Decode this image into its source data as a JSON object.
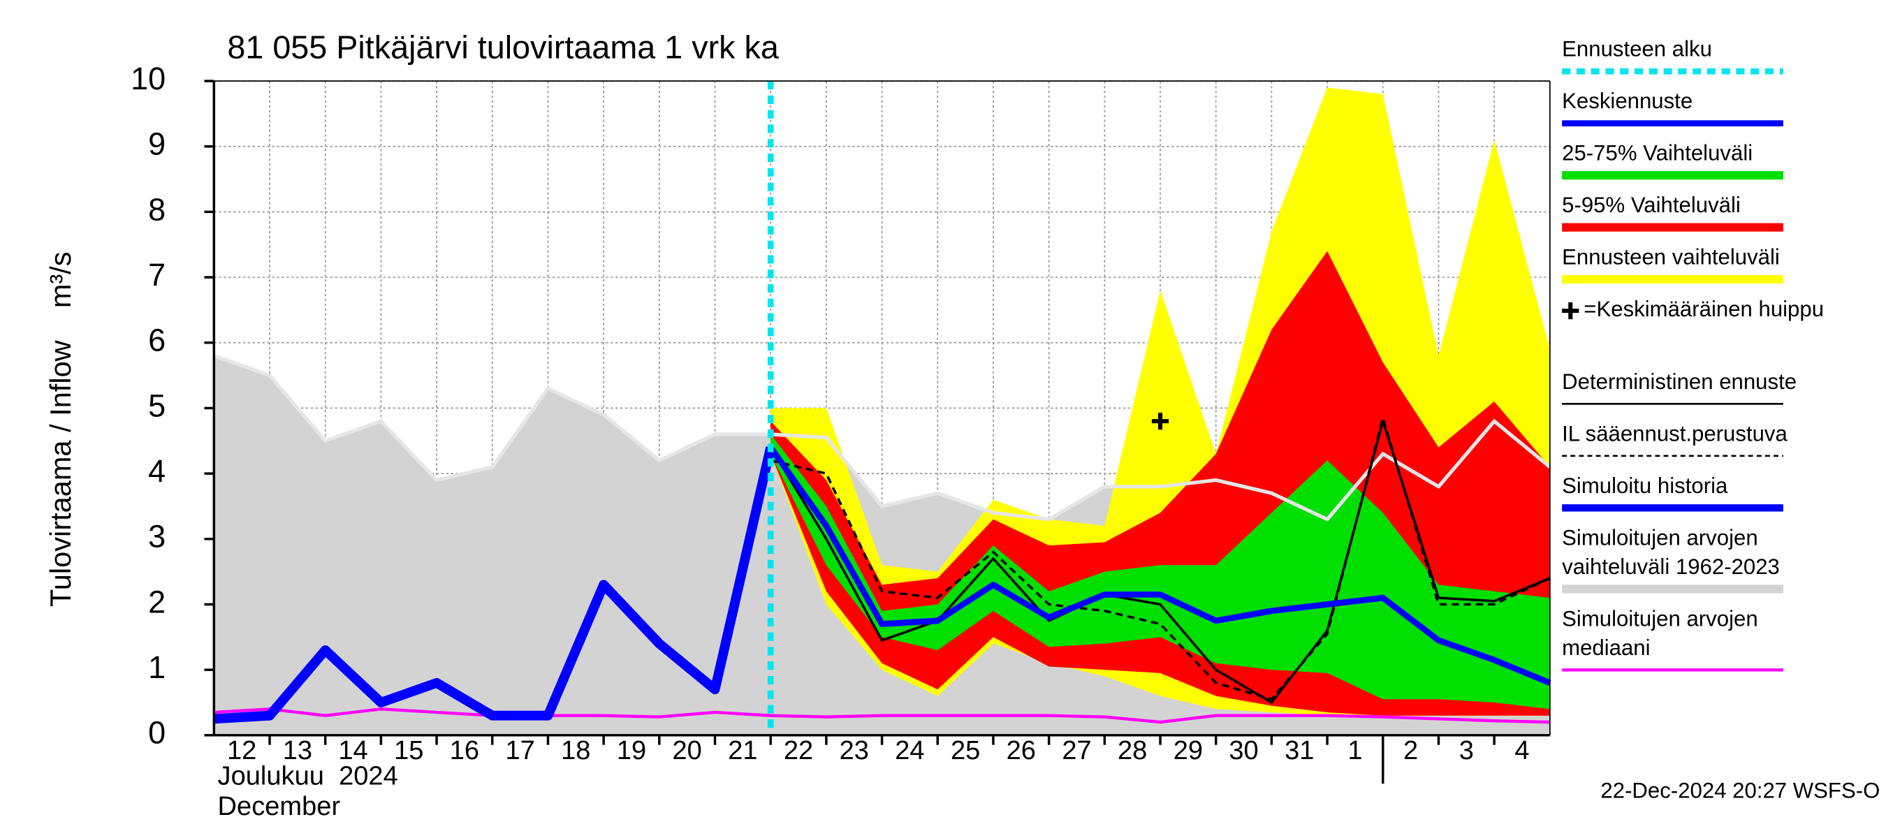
{
  "chart_data": {
    "type": "line",
    "title": "81 055 Pitkäjärvi tulovirtaama 1 vrk ka",
    "ylabel": "Tulovirtaama / Inflow    m³/s",
    "xlabel_lines": [
      "Joulukuu  2024",
      "December"
    ],
    "footer": "22-Dec-2024 20:27 WSFS-O",
    "xlim": [
      0,
      24
    ],
    "ylim": [
      0,
      10
    ],
    "yticks": [
      0,
      1,
      2,
      3,
      4,
      5,
      6,
      7,
      8,
      9,
      10
    ],
    "grid": true,
    "xticks": [
      {
        "value": 0.5,
        "label": "12"
      },
      {
        "value": 1.5,
        "label": "13"
      },
      {
        "value": 2.5,
        "label": "14"
      },
      {
        "value": 3.5,
        "label": "15"
      },
      {
        "value": 4.5,
        "label": "16"
      },
      {
        "value": 5.5,
        "label": "17"
      },
      {
        "value": 6.5,
        "label": "18"
      },
      {
        "value": 7.5,
        "label": "19"
      },
      {
        "value": 8.5,
        "label": "20"
      },
      {
        "value": 9.5,
        "label": "21"
      },
      {
        "value": 10.5,
        "label": "22"
      },
      {
        "value": 11.5,
        "label": "23"
      },
      {
        "value": 12.5,
        "label": "24"
      },
      {
        "value": 13.5,
        "label": "25"
      },
      {
        "value": 14.5,
        "label": "26"
      },
      {
        "value": 15.5,
        "label": "27"
      },
      {
        "value": 16.5,
        "label": "28"
      },
      {
        "value": 17.5,
        "label": "29"
      },
      {
        "value": 18.5,
        "label": "30"
      },
      {
        "value": 19.5,
        "label": "31"
      },
      {
        "value": 20.5,
        "label": "1"
      },
      {
        "value": 21.5,
        "label": "2"
      },
      {
        "value": 22.5,
        "label": "3"
      },
      {
        "value": 23.5,
        "label": "4"
      }
    ],
    "month_ticks": [
      21
    ],
    "x": [
      0,
      1,
      2,
      3,
      4,
      5,
      6,
      7,
      8,
      9,
      10,
      11,
      12,
      13,
      14,
      15,
      16,
      17,
      18,
      19,
      20,
      21,
      22,
      23,
      24
    ],
    "series": [
      {
        "name": "Ennusteen alku",
        "color": "#00e5ee",
        "kind": "vline",
        "at": 10
      },
      {
        "name": "Keskiennuste",
        "color": "#0000ff",
        "kind": "line",
        "width": 5,
        "values": [
          null,
          null,
          null,
          null,
          null,
          null,
          null,
          null,
          null,
          null,
          4.4,
          3.2,
          1.7,
          1.75,
          2.3,
          1.8,
          2.15,
          2.15,
          1.75,
          1.9,
          2.0,
          2.1,
          1.45,
          1.15,
          0.8
        ]
      },
      {
        "name": "25-75% Vaihteluväli",
        "color": "#00e000",
        "kind": "band",
        "values": [
          null,
          null,
          null,
          null,
          null,
          null,
          null,
          null,
          null,
          null,
          4.6,
          3.5,
          1.9,
          2.0,
          2.9,
          2.2,
          2.5,
          2.6,
          2.6,
          3.4,
          4.2,
          3.4,
          2.3,
          2.2,
          2.1
        ],
        "lower": [
          null,
          null,
          null,
          null,
          null,
          null,
          null,
          null,
          null,
          null,
          4.3,
          2.6,
          1.5,
          1.3,
          1.9,
          1.35,
          1.4,
          1.5,
          1.1,
          1.0,
          0.95,
          0.55,
          0.55,
          0.5,
          0.4
        ]
      },
      {
        "name": "5-95% Vaihteluväli",
        "color": "#ff0000",
        "kind": "band",
        "values": [
          null,
          null,
          null,
          null,
          null,
          null,
          null,
          null,
          null,
          null,
          4.8,
          3.9,
          2.3,
          2.4,
          3.3,
          2.9,
          2.95,
          3.4,
          4.3,
          6.2,
          7.4,
          5.7,
          4.4,
          5.1,
          4.1
        ],
        "lower": [
          null,
          null,
          null,
          null,
          null,
          null,
          null,
          null,
          null,
          null,
          4.3,
          2.2,
          1.1,
          0.7,
          1.5,
          1.05,
          1.0,
          0.95,
          0.6,
          0.45,
          0.35,
          0.3,
          0.3,
          0.3,
          0.3
        ]
      },
      {
        "name": "Ennusteen vaihteluväli",
        "color": "#ffff00",
        "kind": "band",
        "values": [
          null,
          null,
          null,
          null,
          null,
          null,
          null,
          null,
          null,
          null,
          5.0,
          5.0,
          2.6,
          2.5,
          3.6,
          3.3,
          3.2,
          6.8,
          4.3,
          7.7,
          9.9,
          9.8,
          5.8,
          9.1,
          5.9
        ],
        "lower": [
          null,
          null,
          null,
          null,
          null,
          null,
          null,
          null,
          null,
          null,
          4.3,
          2.0,
          1.0,
          0.6,
          1.4,
          1.1,
          0.9,
          0.6,
          0.4,
          0.35,
          0.3,
          0.3,
          0.3,
          0.3,
          0.3
        ]
      },
      {
        "name": "=Keskimääräinen huippu",
        "color": "#000000",
        "kind": "marker",
        "values": [
          null,
          null,
          null,
          null,
          null,
          null,
          null,
          null,
          null,
          null,
          null,
          null,
          null,
          null,
          null,
          null,
          null,
          4.8,
          null,
          null,
          null,
          null,
          null,
          null,
          null
        ]
      },
      {
        "name": "Deterministinen ennuste",
        "color": "#000000",
        "kind": "line",
        "width": 2,
        "values": [
          null,
          null,
          null,
          null,
          null,
          null,
          null,
          null,
          null,
          null,
          4.4,
          3.0,
          1.45,
          1.75,
          2.7,
          1.75,
          2.15,
          2.0,
          1.0,
          0.5,
          1.6,
          4.8,
          2.1,
          2.05,
          2.4
        ]
      },
      {
        "name": "IL sääennust.perustuva",
        "color": "#000000",
        "kind": "line",
        "width": 2,
        "dashed": true,
        "values": [
          null,
          null,
          null,
          null,
          null,
          null,
          null,
          null,
          null,
          null,
          4.2,
          4.0,
          2.2,
          2.1,
          2.8,
          2.0,
          1.9,
          1.7,
          0.8,
          0.55,
          1.55,
          4.85,
          2.0,
          2.0,
          2.4
        ]
      },
      {
        "name": "Simuloitu historia",
        "color": "#0000ff",
        "kind": "line",
        "width": 8,
        "values": [
          0.25,
          0.3,
          1.3,
          0.5,
          0.8,
          0.3,
          0.3,
          2.3,
          1.4,
          0.7,
          4.4,
          null,
          null,
          null,
          null,
          null,
          null,
          null,
          null,
          null,
          null,
          null,
          null,
          null,
          null
        ]
      },
      {
        "name": "Simuloitujen arvojen vaihteluväli 1962-2023",
        "color": "#d3d3d3",
        "kind": "band",
        "edge_color": "#e6e6e6",
        "values": [
          5.8,
          5.5,
          4.5,
          4.8,
          3.9,
          4.1,
          5.3,
          4.9,
          4.2,
          4.6,
          4.6,
          4.55,
          3.5,
          3.7,
          3.4,
          3.3,
          3.8,
          3.8,
          3.9,
          3.7,
          3.3,
          4.3,
          3.8,
          4.8,
          4.1
        ],
        "lower": [
          0,
          0,
          0,
          0,
          0,
          0,
          0,
          0,
          0,
          0,
          0,
          0,
          0,
          0,
          0,
          0,
          0,
          0,
          0,
          0,
          0,
          0,
          0,
          0,
          0
        ]
      },
      {
        "name": "Simuloitujen arvojen mediaani",
        "color": "#ff00ff",
        "kind": "line",
        "width": 2.5,
        "values": [
          0.35,
          0.4,
          0.3,
          0.4,
          0.35,
          0.3,
          0.3,
          0.3,
          0.28,
          0.35,
          0.3,
          0.28,
          0.3,
          0.3,
          0.3,
          0.3,
          0.28,
          0.2,
          0.3,
          0.3,
          0.3,
          0.28,
          0.25,
          0.22,
          0.2
        ]
      }
    ]
  }
}
